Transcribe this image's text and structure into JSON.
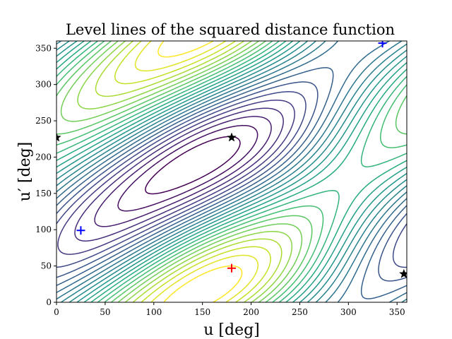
{
  "chart_data": {
    "type": "contour",
    "title": "Level lines of the squared distance function",
    "xlabel": "u [deg]",
    "ylabel": "u′ [deg]",
    "xlim": [
      0,
      360
    ],
    "ylim": [
      0,
      360
    ],
    "x_ticks": [
      0,
      50,
      100,
      150,
      200,
      250,
      300,
      350
    ],
    "y_ticks": [
      0,
      50,
      100,
      150,
      200,
      250,
      300,
      350
    ],
    "x_tick_labels": [
      "0",
      "50",
      "100",
      "150",
      "200",
      "250",
      "300",
      "350"
    ],
    "y_tick_labels": [
      "0",
      "50",
      "100",
      "150",
      "200",
      "250",
      "300",
      "350"
    ],
    "colormap": "viridis",
    "grid": false,
    "markers": [
      {
        "type": "plus",
        "color": "#ff0000",
        "x": 180,
        "y": 47
      },
      {
        "type": "plus",
        "color": "#0000ff",
        "x": 25,
        "y": 99
      },
      {
        "type": "plus",
        "color": "#0000ff",
        "x": 335,
        "y": 357
      },
      {
        "type": "star",
        "color": "#000000",
        "x": 180,
        "y": 227
      },
      {
        "type": "star",
        "color": "#000000",
        "x": 0,
        "y": 227
      },
      {
        "type": "star",
        "color": "#000000",
        "x": 357,
        "y": 39
      }
    ]
  }
}
